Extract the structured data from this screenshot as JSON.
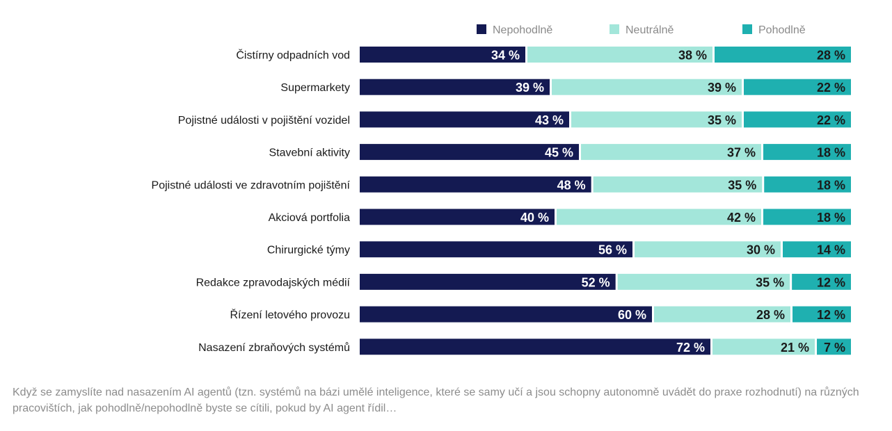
{
  "chart_data": {
    "type": "bar",
    "orientation": "horizontal",
    "stacked": true,
    "percent_scale": true,
    "categories": [
      "Čistírny odpadních vod",
      "Supermarkety",
      "Pojistné události v pojištění vozidel",
      "Stavební aktivity",
      "Pojistné události ve zdravotním pojištění",
      "Akciová portfolia",
      "Chirurgické týmy",
      "Redakce zpravodajských médií",
      "Řízení letového provozu",
      "Nasazení zbraňových systémů"
    ],
    "series": [
      {
        "name": "Nepohodlně",
        "color": "#141a52",
        "label_color": "#ffffff",
        "values": [
          34,
          39,
          43,
          45,
          48,
          40,
          56,
          52,
          60,
          72
        ]
      },
      {
        "name": "Neutrálně",
        "color": "#a3e6da",
        "label_color": "#1a1a1a",
        "values": [
          38,
          39,
          35,
          37,
          35,
          42,
          30,
          35,
          28,
          21
        ]
      },
      {
        "name": "Pohodlně",
        "color": "#1fb0b0",
        "label_color": "#1a1a1a",
        "values": [
          28,
          22,
          22,
          18,
          18,
          18,
          14,
          12,
          12,
          7
        ]
      }
    ],
    "value_suffix": " %",
    "legend_position": "top-right",
    "grid": false,
    "xlim": [
      0,
      100
    ]
  },
  "caption": "Když se zamyslíte nad nasazením AI agentů (tzn. systémů na bázi umělé inteligence, které se samy učí a jsou schopny autonomně uvádět do praxe rozhodnutí) na různých pracovištích, jak pohodlně/nepohodlně byste se cítili, pokud by AI agent řídil…"
}
